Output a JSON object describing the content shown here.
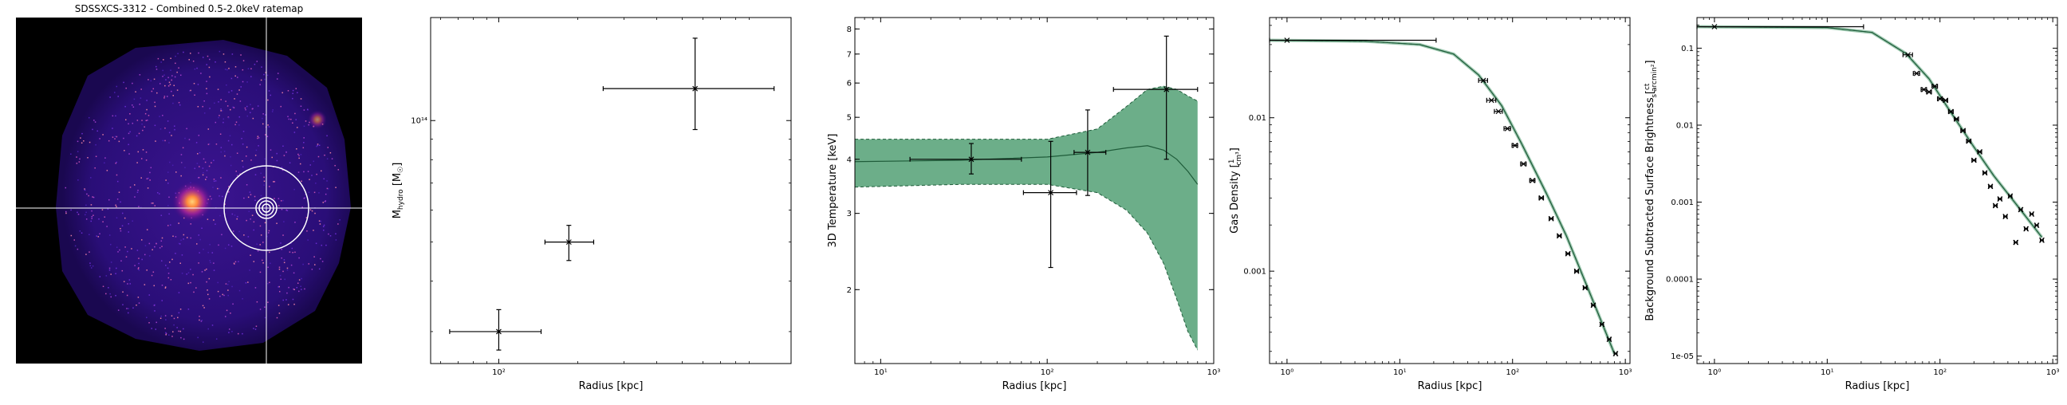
{
  "colors": {
    "axis": "#000000",
    "fit_fill": "#2e8b57",
    "fit_line": "#2e8b57",
    "error_bars": "#000000",
    "crosshair": "#ffffff"
  },
  "chart_data": [
    {
      "type": "image",
      "title": "SDSSXCS-3312 - Combined 0.5-2.0keV ratemap",
      "colormap": "black-purple-magenta-orange",
      "annotations": [
        "crosshair",
        "region-circles"
      ]
    },
    {
      "type": "scatter",
      "title": "",
      "xlabel": "Radius [kpc]",
      "ylabel": "M_hydro [M☉]",
      "xscale": "log",
      "yscale": "log",
      "xlim": [
        55,
        1300
      ],
      "ylim": [
        25000000000000,
        180000000000000
      ],
      "xticks": [
        {
          "v": 100,
          "label": "10²"
        }
      ],
      "yticks": [
        {
          "v": 100000000000000,
          "label": "10¹⁴"
        }
      ],
      "points": [
        {
          "x": 100,
          "xerr": [
            35,
            45
          ],
          "y": 30000000000000,
          "yerr": [
            3000000000000,
            4000000000000
          ]
        },
        {
          "x": 185,
          "xerr": [
            35,
            45
          ],
          "y": 50000000000000,
          "yerr": [
            5000000000000,
            5000000000000
          ]
        },
        {
          "x": 560,
          "xerr": [
            310,
            560
          ],
          "y": 120000000000000,
          "yerr": [
            25000000000000,
            40000000000000
          ]
        }
      ]
    },
    {
      "type": "line",
      "title": "",
      "xlabel": "Radius [kpc]",
      "ylabel": "3D Temperature [keV]",
      "xscale": "log",
      "yscale": "log",
      "xlim": [
        7,
        1000
      ],
      "ylim": [
        1.35,
        8.5
      ],
      "xticks": [
        {
          "v": 10,
          "label": "10¹"
        },
        {
          "v": 100,
          "label": "10²"
        },
        {
          "v": 1000,
          "label": "10³"
        }
      ],
      "yticks": [
        {
          "v": 2,
          "label": "2"
        },
        {
          "v": 3,
          "label": "3"
        },
        {
          "v": 4,
          "label": "4"
        },
        {
          "v": 5,
          "label": "5"
        },
        {
          "v": 6,
          "label": "6"
        },
        {
          "v": 7,
          "label": "7"
        },
        {
          "v": 8,
          "label": "8"
        }
      ],
      "model": [
        {
          "x": 7,
          "y": 3.95,
          "lo": 3.45,
          "hi": 4.45
        },
        {
          "x": 30,
          "y": 3.98,
          "lo": 3.5,
          "hi": 4.45
        },
        {
          "x": 100,
          "y": 4.05,
          "lo": 3.5,
          "hi": 4.45
        },
        {
          "x": 200,
          "y": 4.15,
          "lo": 3.35,
          "hi": 4.7
        },
        {
          "x": 300,
          "y": 4.25,
          "lo": 3.05,
          "hi": 5.3
        },
        {
          "x": 400,
          "y": 4.3,
          "lo": 2.7,
          "hi": 5.8
        },
        {
          "x": 500,
          "y": 4.2,
          "lo": 2.3,
          "hi": 5.9
        },
        {
          "x": 600,
          "y": 4.0,
          "lo": 1.9,
          "hi": 5.8
        },
        {
          "x": 700,
          "y": 3.75,
          "lo": 1.6,
          "hi": 5.6
        },
        {
          "x": 800,
          "y": 3.5,
          "lo": 1.45,
          "hi": 5.45
        }
      ],
      "points": [
        {
          "x": 35,
          "xerr": [
            20,
            35
          ],
          "y": 4.0,
          "yerr": [
            0.3,
            0.35
          ]
        },
        {
          "x": 105,
          "xerr": [
            33,
            45
          ],
          "y": 3.35,
          "yerr": [
            1.1,
            1.05
          ]
        },
        {
          "x": 175,
          "xerr": [
            30,
            50
          ],
          "y": 4.15,
          "yerr": [
            0.85,
            1.05
          ]
        },
        {
          "x": 520,
          "xerr": [
            270,
            280
          ],
          "y": 5.8,
          "yerr": [
            1.8,
            1.9
          ]
        }
      ]
    },
    {
      "type": "line",
      "title": "",
      "xlabel": "Radius [kpc]",
      "ylabel": "Gas Density [1/cm³]",
      "xscale": "log",
      "yscale": "log",
      "xlim": [
        0.7,
        1100
      ],
      "ylim": [
        0.00025,
        0.045
      ],
      "xticks": [
        {
          "v": 1,
          "label": "10⁰"
        },
        {
          "v": 10,
          "label": "10¹"
        },
        {
          "v": 100,
          "label": "10²"
        },
        {
          "v": 1000,
          "label": "10³"
        }
      ],
      "yticks": [
        {
          "v": 0.01,
          "label": "0.01"
        },
        {
          "v": 0.001,
          "label": "0.001"
        }
      ],
      "model": [
        {
          "x": 0.7,
          "y": 0.032
        },
        {
          "x": 5,
          "y": 0.0315
        },
        {
          "x": 15,
          "y": 0.03
        },
        {
          "x": 30,
          "y": 0.026
        },
        {
          "x": 50,
          "y": 0.019
        },
        {
          "x": 80,
          "y": 0.012
        },
        {
          "x": 120,
          "y": 0.0068
        },
        {
          "x": 200,
          "y": 0.0032
        },
        {
          "x": 300,
          "y": 0.0017
        },
        {
          "x": 500,
          "y": 0.00068
        },
        {
          "x": 800,
          "y": 0.00029
        }
      ],
      "points": [
        {
          "x": 1.0,
          "xerr": [
            0.3,
            20
          ],
          "y": 0.032
        },
        {
          "x": 55,
          "xerr": [
            5,
            5
          ],
          "y": 0.0175
        },
        {
          "x": 65,
          "xerr": [
            6,
            6
          ],
          "y": 0.013
        },
        {
          "x": 75,
          "xerr": [
            6,
            6
          ],
          "y": 0.011
        },
        {
          "x": 90,
          "xerr": [
            6,
            6
          ],
          "y": 0.0085
        },
        {
          "x": 105,
          "xerr": [
            6,
            6
          ],
          "y": 0.0066
        },
        {
          "x": 125,
          "xerr": [
            7,
            7
          ],
          "y": 0.005
        },
        {
          "x": 150,
          "xerr": [
            8,
            8
          ],
          "y": 0.0039
        },
        {
          "x": 180,
          "xerr": [
            8,
            8
          ],
          "y": 0.003
        },
        {
          "x": 220,
          "xerr": [
            9,
            9
          ],
          "y": 0.0022
        },
        {
          "x": 260,
          "xerr": [
            10,
            10
          ],
          "y": 0.0017
        },
        {
          "x": 310,
          "xerr": [
            12,
            12
          ],
          "y": 0.0013
        },
        {
          "x": 370,
          "xerr": [
            14,
            14
          ],
          "y": 0.001
        },
        {
          "x": 440,
          "xerr": [
            16,
            16
          ],
          "y": 0.00078
        },
        {
          "x": 520,
          "xerr": [
            18,
            18
          ],
          "y": 0.0006
        },
        {
          "x": 620,
          "xerr": [
            20,
            20
          ],
          "y": 0.00045
        },
        {
          "x": 720,
          "xerr": [
            22,
            22
          ],
          "y": 0.00036
        },
        {
          "x": 820,
          "xerr": [
            24,
            24
          ],
          "y": 0.00029
        }
      ]
    },
    {
      "type": "line",
      "title": "",
      "xlabel": "Radius [kpc]",
      "ylabel": "Background Subtracted Surface Brightness [ct / (s arcmin²)]",
      "xscale": "log",
      "yscale": "log",
      "xlim": [
        0.7,
        1100
      ],
      "ylim": [
        8e-06,
        0.25
      ],
      "xticks": [
        {
          "v": 1,
          "label": "10⁰"
        },
        {
          "v": 10,
          "label": "10¹"
        },
        {
          "v": 100,
          "label": "10²"
        },
        {
          "v": 1000,
          "label": "10³"
        }
      ],
      "yticks": [
        {
          "v": 0.1,
          "label": "0.1"
        },
        {
          "v": 0.01,
          "label": "0.01"
        },
        {
          "v": 0.001,
          "label": "0.001"
        },
        {
          "v": 0.0001,
          "label": "0.0001"
        },
        {
          "v": 1e-05,
          "label": "1e-05"
        }
      ],
      "model": [
        {
          "x": 0.7,
          "y": 0.19
        },
        {
          "x": 10,
          "y": 0.185
        },
        {
          "x": 25,
          "y": 0.16
        },
        {
          "x": 50,
          "y": 0.085
        },
        {
          "x": 80,
          "y": 0.04
        },
        {
          "x": 120,
          "y": 0.016
        },
        {
          "x": 200,
          "y": 0.0052
        },
        {
          "x": 300,
          "y": 0.0022
        },
        {
          "x": 500,
          "y": 0.00085
        },
        {
          "x": 800,
          "y": 0.00035
        }
      ],
      "points": [
        {
          "x": 1.0,
          "xerr": [
            0.3,
            20
          ],
          "y": 0.19
        },
        {
          "x": 52,
          "xerr": [
            5,
            5
          ],
          "y": 0.082
        },
        {
          "x": 62,
          "xerr": [
            4,
            4
          ],
          "y": 0.047
        },
        {
          "x": 72,
          "xerr": [
            4,
            4
          ],
          "y": 0.029
        },
        {
          "x": 80,
          "xerr": [
            4,
            4
          ],
          "y": 0.027
        },
        {
          "x": 90,
          "xerr": [
            5,
            5
          ],
          "y": 0.032
        },
        {
          "x": 100,
          "xerr": [
            5,
            5
          ],
          "y": 0.022
        },
        {
          "x": 112,
          "xerr": [
            5,
            5
          ],
          "y": 0.021
        },
        {
          "x": 125,
          "xerr": [
            6,
            6
          ],
          "y": 0.015
        },
        {
          "x": 140,
          "xerr": [
            6,
            6
          ],
          "y": 0.012
        },
        {
          "x": 160,
          "xerr": [
            7,
            7
          ],
          "y": 0.0085
        },
        {
          "x": 180,
          "xerr": [
            8,
            8
          ],
          "y": 0.0062
        },
        {
          "x": 200,
          "xerr": [
            8,
            8
          ],
          "y": 0.0035
        },
        {
          "x": 225,
          "xerr": [
            9,
            9
          ],
          "y": 0.0045
        },
        {
          "x": 250,
          "xerr": [
            9,
            9
          ],
          "y": 0.0024
        },
        {
          "x": 280,
          "xerr": [
            10,
            10
          ],
          "y": 0.0016
        },
        {
          "x": 310,
          "xerr": [
            11,
            11
          ],
          "y": 0.0009
        },
        {
          "x": 340,
          "xerr": [
            12,
            12
          ],
          "y": 0.0011
        },
        {
          "x": 380,
          "xerr": [
            13,
            13
          ],
          "y": 0.00065
        },
        {
          "x": 420,
          "xerr": [
            14,
            14
          ],
          "y": 0.0012
        },
        {
          "x": 470,
          "xerr": [
            15,
            15
          ],
          "y": 0.0003
        },
        {
          "x": 520,
          "xerr": [
            16,
            16
          ],
          "y": 0.0008
        },
        {
          "x": 580,
          "xerr": [
            18,
            18
          ],
          "y": 0.00045
        },
        {
          "x": 650,
          "xerr": [
            20,
            20
          ],
          "y": 0.0007
        },
        {
          "x": 720,
          "xerr": [
            22,
            22
          ],
          "y": 0.0005
        },
        {
          "x": 800,
          "xerr": [
            24,
            24
          ],
          "y": 0.00032
        }
      ]
    }
  ]
}
